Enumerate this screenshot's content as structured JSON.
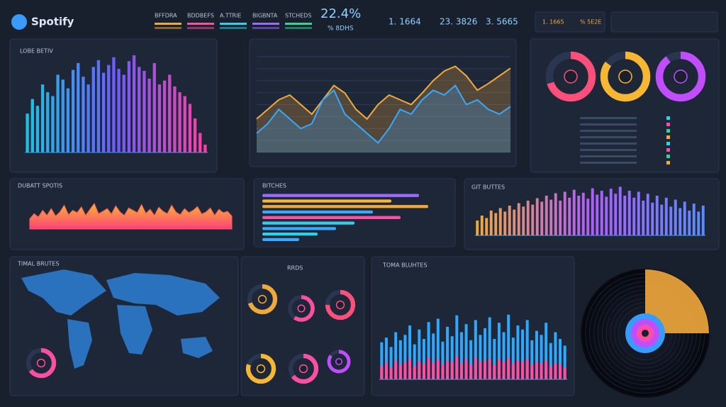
{
  "header": {
    "logo": "Spotify",
    "legend": [
      {
        "label": "BFFDRA",
        "color": "#f2a93b"
      },
      {
        "label": "BDDBEFS",
        "color": "#ff4fa3"
      },
      {
        "label": "A.TTRIE",
        "color": "#2fd0e8"
      },
      {
        "label": "BIGBNTA",
        "color": "#9b6bff"
      },
      {
        "label": "STCHEDS",
        "color": "#35d39a"
      }
    ],
    "headline": "22.4%",
    "headline_sub": "% 8DHS",
    "stats": [
      "1. 1664",
      "23. 3826",
      "3. 5665"
    ],
    "badges": [
      "1. 1665",
      "% 5E2E"
    ]
  },
  "chart_data": [
    {
      "type": "bar",
      "title": "LOBE BETIV",
      "ylim": [
        0,
        100
      ],
      "colors": [
        "#19c3e6",
        "#6f5cff",
        "#ff3fa4"
      ],
      "values": [
        40,
        55,
        48,
        70,
        62,
        58,
        80,
        75,
        66,
        85,
        92,
        78,
        70,
        88,
        95,
        82,
        90,
        98,
        86,
        80,
        94,
        100,
        88,
        84,
        76,
        92,
        70,
        74,
        80,
        68,
        62,
        58,
        50,
        35,
        20,
        8
      ]
    },
    {
      "type": "line",
      "ylim": [
        0,
        100
      ],
      "series": [
        {
          "color": "#f2a93b",
          "values": [
            35,
            45,
            55,
            60,
            50,
            40,
            55,
            70,
            62,
            45,
            35,
            50,
            60,
            55,
            50,
            62,
            75,
            85,
            90,
            80,
            65,
            72,
            80,
            88
          ]
        },
        {
          "color": "#3aa8ff",
          "values": [
            20,
            30,
            45,
            35,
            25,
            30,
            55,
            65,
            40,
            30,
            20,
            10,
            25,
            45,
            40,
            55,
            65,
            60,
            70,
            50,
            55,
            45,
            40,
            48
          ]
        }
      ]
    },
    {
      "type": "donut",
      "values": [
        70,
        85,
        90
      ],
      "colors": [
        "#ff4f7a",
        "#f7b733",
        "#c04dff"
      ]
    },
    {
      "type": "area",
      "title": "DUBATT SPOTIS",
      "ylim": [
        0,
        100
      ],
      "color": "#ff5a5a",
      "values": [
        30,
        45,
        35,
        55,
        40,
        60,
        38,
        50,
        70,
        42,
        55,
        48,
        65,
        40,
        58,
        75,
        45,
        52,
        60,
        44,
        68,
        50,
        40,
        62,
        55,
        48,
        72,
        46,
        58,
        40,
        64,
        52,
        45,
        70,
        50,
        42,
        60,
        48,
        55,
        66,
        44,
        50,
        62,
        40,
        58,
        48,
        52,
        38
      ]
    },
    {
      "type": "hbar",
      "title": "BITCHES",
      "xlim": [
        0,
        100
      ],
      "values": [
        85,
        70,
        90,
        60,
        75,
        50,
        40,
        30,
        20
      ],
      "colors": [
        "#9b6bff",
        "#f7b733",
        "#f2a93b",
        "#3aa8ff",
        "#ff4fa3",
        "#2fd0e8",
        "#3aa8ff",
        "#2fd0e8",
        "#3aa8ff"
      ]
    },
    {
      "type": "bar",
      "title": "GIT BUTTES",
      "ylim": [
        0,
        100
      ],
      "colors": [
        "#f2a93b",
        "#b05cff",
        "#5b8cff"
      ],
      "values": [
        30,
        40,
        35,
        50,
        45,
        55,
        48,
        60,
        52,
        65,
        58,
        70,
        62,
        75,
        68,
        80,
        72,
        85,
        70,
        88,
        76,
        92,
        80,
        86,
        74,
        95,
        82,
        90,
        78,
        94,
        84,
        98,
        80,
        90,
        76,
        88,
        70,
        84,
        66,
        80,
        62,
        76,
        58,
        72,
        55,
        68,
        50,
        64,
        48,
        60
      ]
    },
    {
      "type": "donut",
      "title": "TIMAL BRUTES",
      "values": [
        65
      ],
      "colors": [
        "#ff4fa3"
      ]
    },
    {
      "type": "donut",
      "title": "RRDS",
      "values": [
        70,
        60,
        75,
        80,
        65,
        85
      ],
      "colors": [
        "#f2a93b",
        "#ff4fa3",
        "#ff4f7a",
        "#f7b733",
        "#ff4fa3",
        "#c04dff"
      ]
    },
    {
      "type": "bar",
      "title": "TOMA BLUHTES",
      "ylim": [
        0,
        100
      ],
      "series": [
        {
          "color": "#2fa8ff",
          "values": [
            55,
            62,
            48,
            70,
            58,
            66,
            80,
            52,
            74,
            60,
            85,
            68,
            90,
            56,
            78,
            64,
            95,
            70,
            82,
            58,
            88,
            66,
            76,
            92,
            60,
            84,
            70,
            96,
            62,
            80,
            74,
            88,
            58,
            72,
            66,
            84,
            54,
            70,
            60,
            50
          ]
        },
        {
          "color": "#ff4fa3",
          "values": [
            20,
            25,
            18,
            28,
            22,
            26,
            30,
            20,
            27,
            24,
            32,
            25,
            30,
            22,
            28,
            26,
            34,
            24,
            30,
            22,
            32,
            26,
            28,
            30,
            22,
            30,
            26,
            32,
            24,
            28,
            26,
            30,
            22,
            26,
            24,
            28,
            20,
            24,
            22,
            18
          ]
        }
      ]
    },
    {
      "type": "pie",
      "values": [
        25
      ],
      "colors": [
        "#f2a93b"
      ]
    }
  ]
}
